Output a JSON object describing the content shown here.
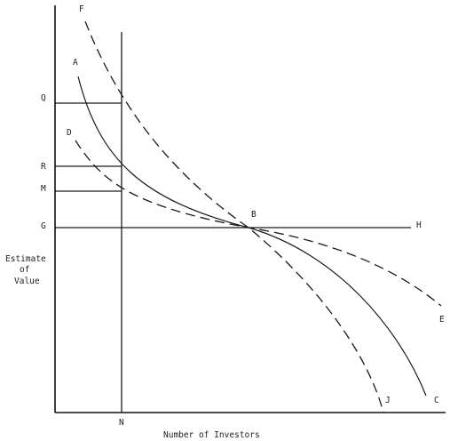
{
  "axes": {
    "y_label_lines": [
      "Estimate",
      "of",
      "Value"
    ],
    "x_label": "Number of Investors"
  },
  "y_levels": {
    "Q": "Q",
    "R": "R",
    "M": "M",
    "G": "G"
  },
  "x_marks": {
    "N": "N"
  },
  "points": {
    "B": "B",
    "H": "H"
  },
  "curves": {
    "A": "A",
    "C": "C",
    "D": "D",
    "E": "E",
    "F": "F",
    "J": "J"
  }
}
